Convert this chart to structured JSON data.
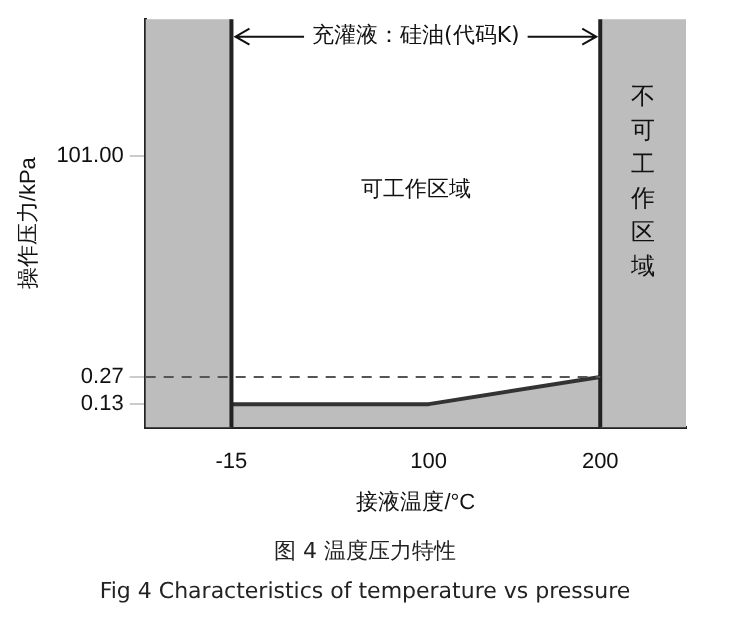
{
  "chart_data": {
    "type": "area",
    "xlabel": "接液温度/°C",
    "ylabel": "操作压力/kPa",
    "log": "y",
    "x": [
      -15,
      100,
      200
    ],
    "series": [
      {
        "color": "#333333",
        "values": [
          0.13,
          0.13,
          0.27
        ]
      }
    ],
    "xlim": [
      -65,
      250
    ],
    "xticks": [
      -15,
      100,
      200
    ],
    "ylim": [
      0.07,
      4000
    ],
    "yticks": [
      0.13,
      0.27,
      {
        "value": 101,
        "label": "101.00"
      }
    ],
    "ref_lines": [
      {
        "axis": "x",
        "value": -15,
        "color": "#222222"
      },
      {
        "axis": "x",
        "value": 200,
        "color": "#222222"
      },
      {
        "axis": "y",
        "value": 0.27,
        "color": "#555555",
        "line_style": "dashed"
      }
    ],
    "bands": [
      {
        "axis": "x",
        "from": -65,
        "to": -15,
        "color": "#bdbdbd"
      },
      {
        "axis": "x",
        "from": 200,
        "to": 250,
        "color": "#bdbdbd",
        "label": "不可工作区域"
      }
    ],
    "annotations": [
      {
        "text": "充灌液：硅油(代码K)",
        "x": 200,
        "y": 2500
      },
      "可工作区域",
      "图 4  温度压力特性",
      "Fig 4  Characteristics of temperature vs pressure"
    ],
    "grid": false,
    "legend": false,
    "marker": "none",
    "line_style": "solid"
  }
}
